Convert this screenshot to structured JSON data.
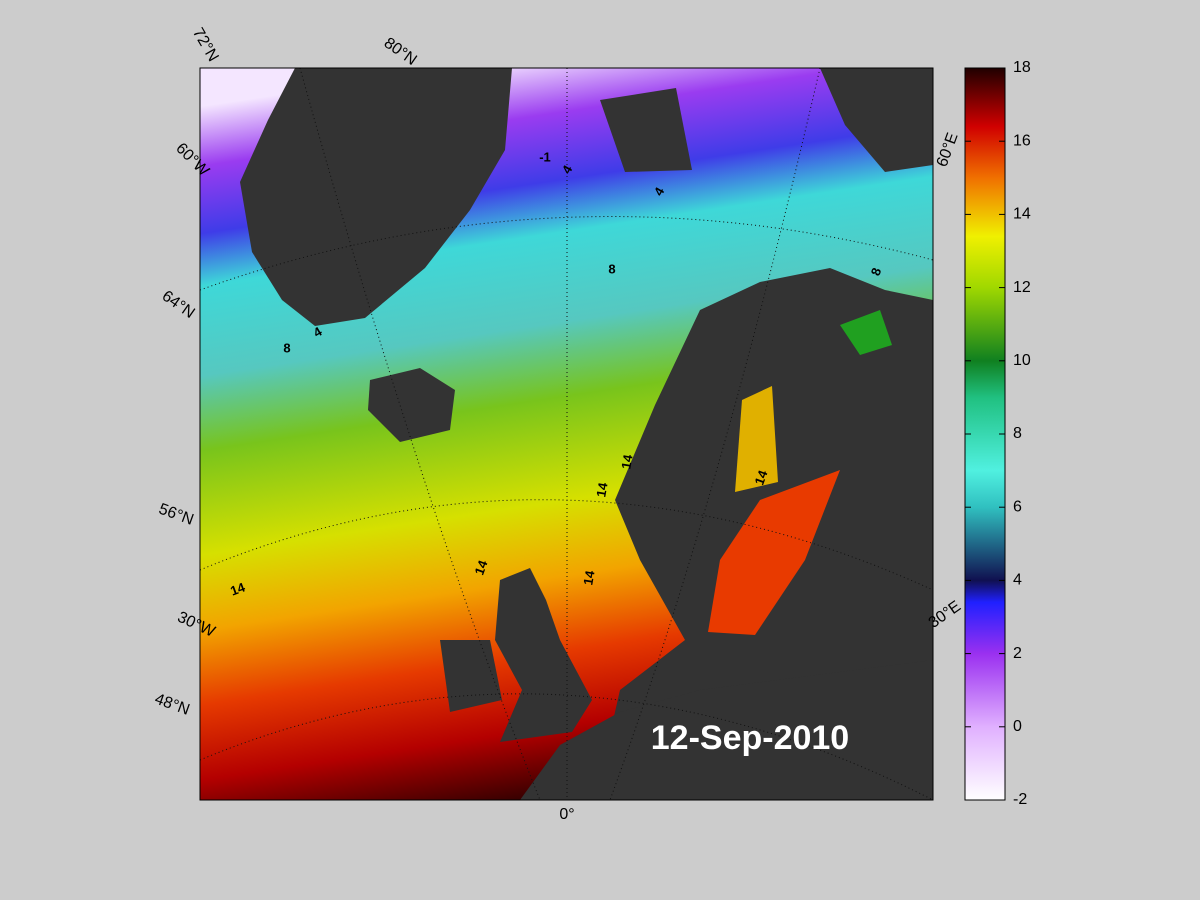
{
  "map": {
    "date": "12-Sep-2010",
    "graticule_labels": [
      "72°N",
      "80°N",
      "60°W",
      "64°N",
      "56°N",
      "30°W",
      "48°N",
      "0°",
      "30°E",
      "60°E"
    ],
    "contour_labels": [
      -1,
      4,
      4,
      4,
      8,
      8,
      8,
      14,
      14,
      14,
      14,
      14,
      14
    ]
  },
  "colorbar": {
    "lim": [
      -2,
      18
    ],
    "ticks": [
      -2,
      0,
      2,
      4,
      6,
      8,
      10,
      12,
      14,
      16,
      18
    ]
  }
}
